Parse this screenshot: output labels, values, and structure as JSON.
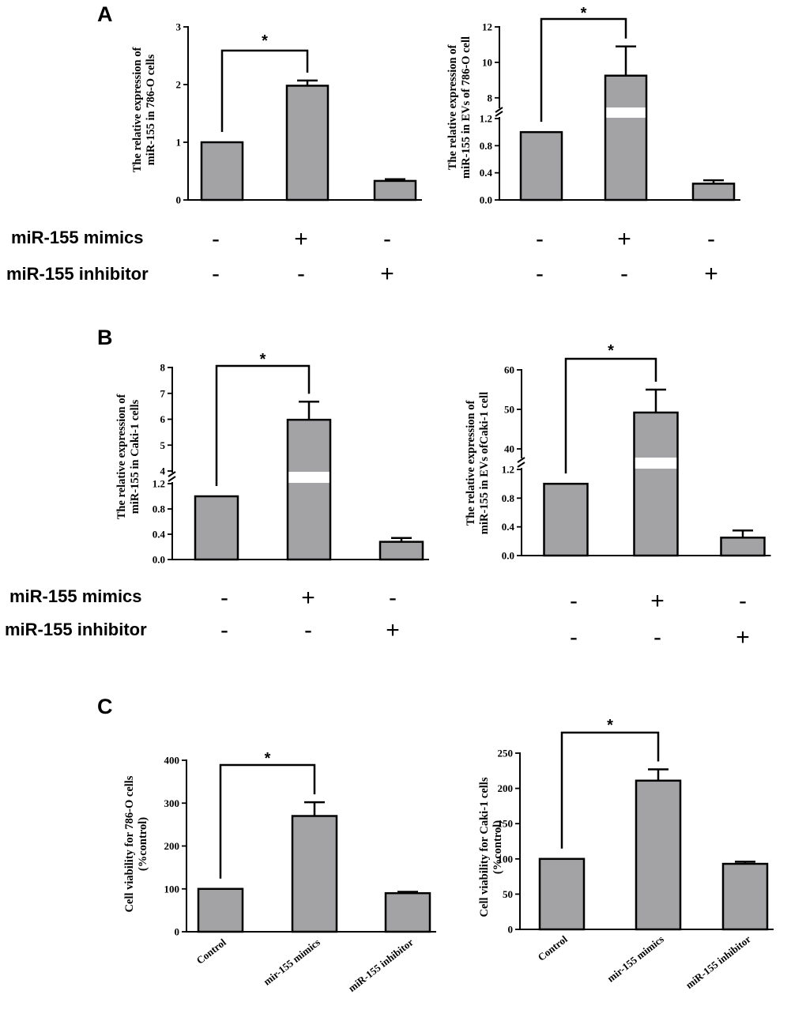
{
  "panels": {
    "A": "A",
    "B": "B",
    "C": "C"
  },
  "treatment_labels": {
    "mimics": "miR-155 mimics",
    "inhibitor": "miR-155 inhibitor"
  },
  "colors": {
    "bar": "#a3a3a6",
    "stroke": "#000000",
    "background": "#ffffff"
  },
  "chart_data": [
    {
      "id": "A-left",
      "type": "bar",
      "ylabel": [
        "The relative expression of",
        "miR-155 in 786-O cells"
      ],
      "yaxis": {
        "type": "linear",
        "min": 0,
        "max": 3,
        "ticks": [
          0,
          1,
          2,
          3
        ],
        "tick_labels": [
          "0",
          "1",
          "2",
          "3"
        ]
      },
      "categories": [
        "",
        "",
        ""
      ],
      "values": [
        1.0,
        1.98,
        0.33
      ],
      "errors": [
        0,
        0.09,
        0.03
      ],
      "significance": {
        "from": 0,
        "to": 1,
        "label": "*"
      },
      "treatments": {
        "mimics": [
          "-",
          "+",
          "-"
        ],
        "inhibitor": [
          "-",
          "-",
          "+"
        ]
      }
    },
    {
      "id": "A-right",
      "type": "bar",
      "ylabel": [
        "The relative expression of",
        "miR-155 in EVs of 786-O cell"
      ],
      "yaxis": {
        "type": "broken",
        "lower": {
          "min": 0,
          "max": 1.2,
          "ticks": [
            0,
            0.4,
            0.8,
            1.2
          ],
          "tick_labels": [
            "0.0",
            "0.4",
            "0.8",
            "1.2"
          ]
        },
        "upper": {
          "min": 7.5,
          "max": 12,
          "ticks": [
            8,
            10,
            12
          ],
          "tick_labels": [
            "8",
            "10",
            "12"
          ]
        }
      },
      "categories": [
        "",
        "",
        ""
      ],
      "values": [
        1.0,
        9.25,
        0.24
      ],
      "errors": [
        0,
        1.65,
        0.05
      ],
      "significance": {
        "from": 0,
        "to": 1,
        "label": "*"
      },
      "treatments": {
        "mimics": [
          "-",
          "+",
          "-"
        ],
        "inhibitor": [
          "-",
          "-",
          "+"
        ]
      }
    },
    {
      "id": "B-left",
      "type": "bar",
      "ylabel": [
        "The relative expression of",
        "miR-155 in Caki-1 cells"
      ],
      "yaxis": {
        "type": "broken",
        "lower": {
          "min": 0,
          "max": 1.2,
          "ticks": [
            0,
            0.4,
            0.8,
            1.2
          ],
          "tick_labels": [
            "0.0",
            "0.4",
            "0.8",
            "1.2"
          ]
        },
        "upper": {
          "min": 4,
          "max": 8,
          "ticks": [
            4,
            5,
            6,
            7,
            8
          ],
          "tick_labels": [
            "4",
            "5",
            "6",
            "7",
            "8"
          ]
        }
      },
      "categories": [
        "",
        "",
        ""
      ],
      "values": [
        1.0,
        5.98,
        0.28
      ],
      "errors": [
        0,
        0.7,
        0.06
      ],
      "significance": {
        "from": 0,
        "to": 1,
        "label": "*"
      },
      "treatments": {
        "mimics": [
          "-",
          "+",
          "-"
        ],
        "inhibitor": [
          "-",
          "-",
          "+"
        ]
      }
    },
    {
      "id": "B-right",
      "type": "bar",
      "ylabel": [
        "The relative expression of",
        "miR-155 in EVs ofCaki-1 cell"
      ],
      "yaxis": {
        "type": "broken",
        "lower": {
          "min": 0,
          "max": 1.2,
          "ticks": [
            0,
            0.4,
            0.8,
            1.2
          ],
          "tick_labels": [
            "0.0",
            "0.4",
            "0.8",
            "1.2"
          ]
        },
        "upper": {
          "min": 38,
          "max": 60,
          "ticks": [
            40,
            50,
            60
          ],
          "tick_labels": [
            "40",
            "50",
            "60"
          ]
        }
      },
      "categories": [
        "",
        "",
        ""
      ],
      "values": [
        1.0,
        49.2,
        0.25
      ],
      "errors": [
        0,
        5.8,
        0.1
      ],
      "significance": {
        "from": 0,
        "to": 1,
        "label": "*"
      },
      "treatments": {
        "mimics": [
          "-",
          "+",
          "-"
        ],
        "inhibitor": [
          "-",
          "-",
          "+"
        ]
      }
    },
    {
      "id": "C-left",
      "type": "bar",
      "ylabel": [
        "Cell viability for 786-O cells",
        "(%control)"
      ],
      "yaxis": {
        "type": "linear",
        "min": 0,
        "max": 400,
        "ticks": [
          0,
          100,
          200,
          300,
          400
        ],
        "tick_labels": [
          "0",
          "100",
          "200",
          "300",
          "400"
        ]
      },
      "categories": [
        "Control",
        "mir-155 mimics",
        "miR-155 inhibitor"
      ],
      "values": [
        100,
        270,
        90
      ],
      "errors": [
        0,
        32,
        3
      ],
      "significance": {
        "from": 0,
        "to": 1,
        "label": "*"
      }
    },
    {
      "id": "C-right",
      "type": "bar",
      "ylabel": [
        "Cell viability for Caki-1 cells",
        "(%control)"
      ],
      "yaxis": {
        "type": "linear",
        "min": 0,
        "max": 250,
        "ticks": [
          0,
          50,
          100,
          150,
          200,
          250
        ],
        "tick_labels": [
          "0",
          "50",
          "100",
          "150",
          "200",
          "250"
        ]
      },
      "categories": [
        "Control",
        "mir-155 mimics",
        "miR-155 inhibitor"
      ],
      "values": [
        100,
        211,
        93
      ],
      "errors": [
        0,
        16,
        3
      ],
      "significance": {
        "from": 0,
        "to": 1,
        "label": "*"
      }
    }
  ]
}
